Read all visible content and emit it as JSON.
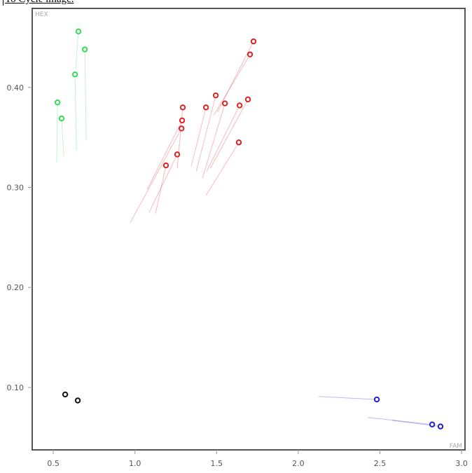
{
  "caption": "To Cycle image.",
  "chart_data": {
    "type": "scatter",
    "x_label": "FAM",
    "y_label": "HEX",
    "xlim": [
      0.371,
      3.021
    ],
    "ylim": [
      0.0376,
      0.479
    ],
    "xticks": [
      0.5,
      {
        "value": 1.0,
        "label": "1.0"
      },
      1.5,
      {
        "value": 2.0,
        "label": "2.0"
      },
      2.5,
      {
        "value": 3.0,
        "label": "3.0"
      }
    ],
    "yticks": [
      {
        "value": 0.1,
        "label": "0.10"
      },
      {
        "value": 0.2,
        "label": "0.20"
      },
      {
        "value": 0.3,
        "label": "0.30"
      },
      {
        "value": 0.4,
        "label": "0.40"
      }
    ],
    "series": [
      {
        "color": "#33dd55",
        "x": [
          0.526,
          0.551,
          0.633,
          0.654,
          0.693
        ],
        "values": [
          0.385,
          0.369,
          0.413,
          0.456,
          0.438
        ],
        "tail_x": [
          0.521,
          0.564,
          0.642,
          0.637,
          0.702
        ],
        "tail_y": [
          0.325,
          0.332,
          0.337,
          0.418,
          0.347
        ]
      },
      {
        "color": "#dd2222",
        "x": [
          1.19,
          1.259,
          1.285,
          1.289,
          1.293,
          1.435,
          1.495,
          1.551,
          1.641,
          1.636,
          1.692,
          1.705,
          1.726
        ],
        "values": [
          0.322,
          0.333,
          0.359,
          0.367,
          0.38,
          0.38,
          0.392,
          0.384,
          0.382,
          0.345,
          0.388,
          0.433,
          0.446
        ],
        "tail_x": [
          1.126,
          1.087,
          0.972,
          1.075,
          1.259,
          1.345,
          1.375,
          1.413,
          1.439,
          1.435,
          1.461,
          1.482,
          1.504
        ],
        "tail_y": [
          0.274,
          0.275,
          0.265,
          0.298,
          0.319,
          0.321,
          0.316,
          0.309,
          0.316,
          0.292,
          0.319,
          0.372,
          0.375
        ]
      },
      {
        "color": "#111111",
        "x": [
          0.573,
          0.65
        ],
        "values": [
          0.093,
          0.087
        ]
      },
      {
        "color": "#2222cc",
        "x": [
          2.481,
          2.82,
          2.871
        ],
        "values": [
          0.088,
          0.063,
          0.061
        ],
        "tail_x": [
          2.125,
          2.425,
          2.575
        ],
        "tail_y": [
          0.091,
          0.07,
          0.067
        ]
      }
    ]
  }
}
